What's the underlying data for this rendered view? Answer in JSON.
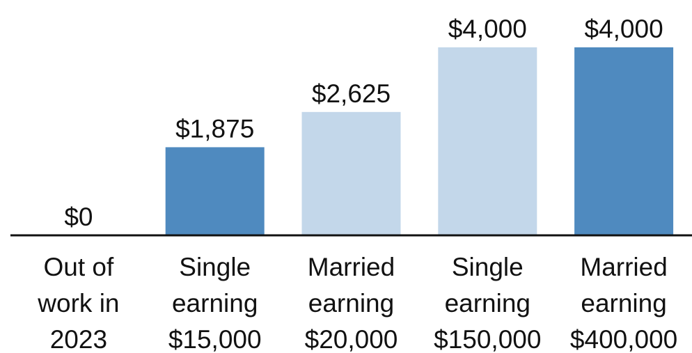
{
  "chart_data": {
    "type": "bar",
    "categories": [
      [
        "Out of",
        "work in",
        "2023"
      ],
      [
        "Single",
        "earning",
        "$15,000"
      ],
      [
        "Married",
        "earning",
        "$20,000"
      ],
      [
        "Single",
        "earning",
        "$150,000"
      ],
      [
        "Married",
        "earning",
        "$400,000"
      ]
    ],
    "values": [
      0,
      1875,
      2625,
      4000,
      4000
    ],
    "value_labels": [
      "$0",
      "$1,875",
      "$2,625",
      "$4,000",
      "$4,000"
    ],
    "colors": [
      "#4f8abf",
      "#4f8abf",
      "#c3d7ea",
      "#c3d7ea",
      "#4f8abf"
    ],
    "ylim": [
      0,
      4000
    ]
  }
}
